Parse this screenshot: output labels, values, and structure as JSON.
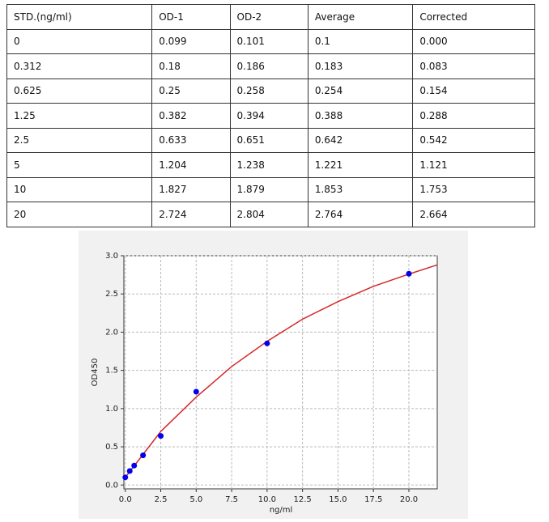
{
  "table": {
    "header": [
      "STD.(ng/ml)",
      "OD-1",
      "OD-2",
      "Average",
      "Corrected"
    ],
    "rows": [
      [
        "0",
        "0.099",
        "0.101",
        "0.1",
        "0.000"
      ],
      [
        "0.312",
        "0.18",
        "0.186",
        "0.183",
        "0.083"
      ],
      [
        "0.625",
        "0.25",
        "0.258",
        "0.254",
        "0.154"
      ],
      [
        "1.25",
        "0.382",
        "0.394",
        "0.388",
        "0.288"
      ],
      [
        "2.5",
        "0.633",
        "0.651",
        "0.642",
        "0.542"
      ],
      [
        "5",
        "1.204",
        "1.238",
        "1.221",
        "1.121"
      ],
      [
        "10",
        "1.827",
        "1.879",
        "1.853",
        "1.753"
      ],
      [
        "20",
        "2.724",
        "2.804",
        "2.764",
        "2.664"
      ]
    ]
  },
  "chart_data": {
    "type": "scatter",
    "x_label": "ng/ml",
    "y_label": "OD450",
    "x": [
      0,
      0.312,
      0.625,
      1.25,
      2.5,
      5,
      10,
      20
    ],
    "values": [
      0.1,
      0.183,
      0.254,
      0.388,
      0.642,
      1.221,
      1.853,
      2.764
    ],
    "color": "#0000ee",
    "fit": {
      "color": "#d62728",
      "x": [
        0,
        1.25,
        2.5,
        5,
        7.5,
        10,
        12.5,
        15,
        17.5,
        20,
        22
      ],
      "values": [
        0.1,
        0.4,
        0.7,
        1.15,
        1.55,
        1.88,
        2.17,
        2.4,
        2.6,
        2.76,
        2.88
      ]
    },
    "xlim": [
      -0.1,
      22
    ],
    "ylim": [
      -0.05,
      3.0
    ],
    "xticks": [
      {
        "value": 0,
        "label": "0.0"
      },
      2.5,
      {
        "value": 5,
        "label": "5.0"
      },
      7.5,
      {
        "value": 10,
        "label": "10.0"
      },
      12.5,
      {
        "value": 15,
        "label": "15.0"
      },
      17.5,
      {
        "value": 20,
        "label": "20.0"
      }
    ],
    "yticks": [
      {
        "value": 0,
        "label": "0.0"
      },
      0.5,
      {
        "value": 1,
        "label": "1.0"
      },
      1.5,
      {
        "value": 2,
        "label": "2.0"
      },
      2.5,
      {
        "value": 3,
        "label": "3.0"
      }
    ],
    "grid": true
  }
}
